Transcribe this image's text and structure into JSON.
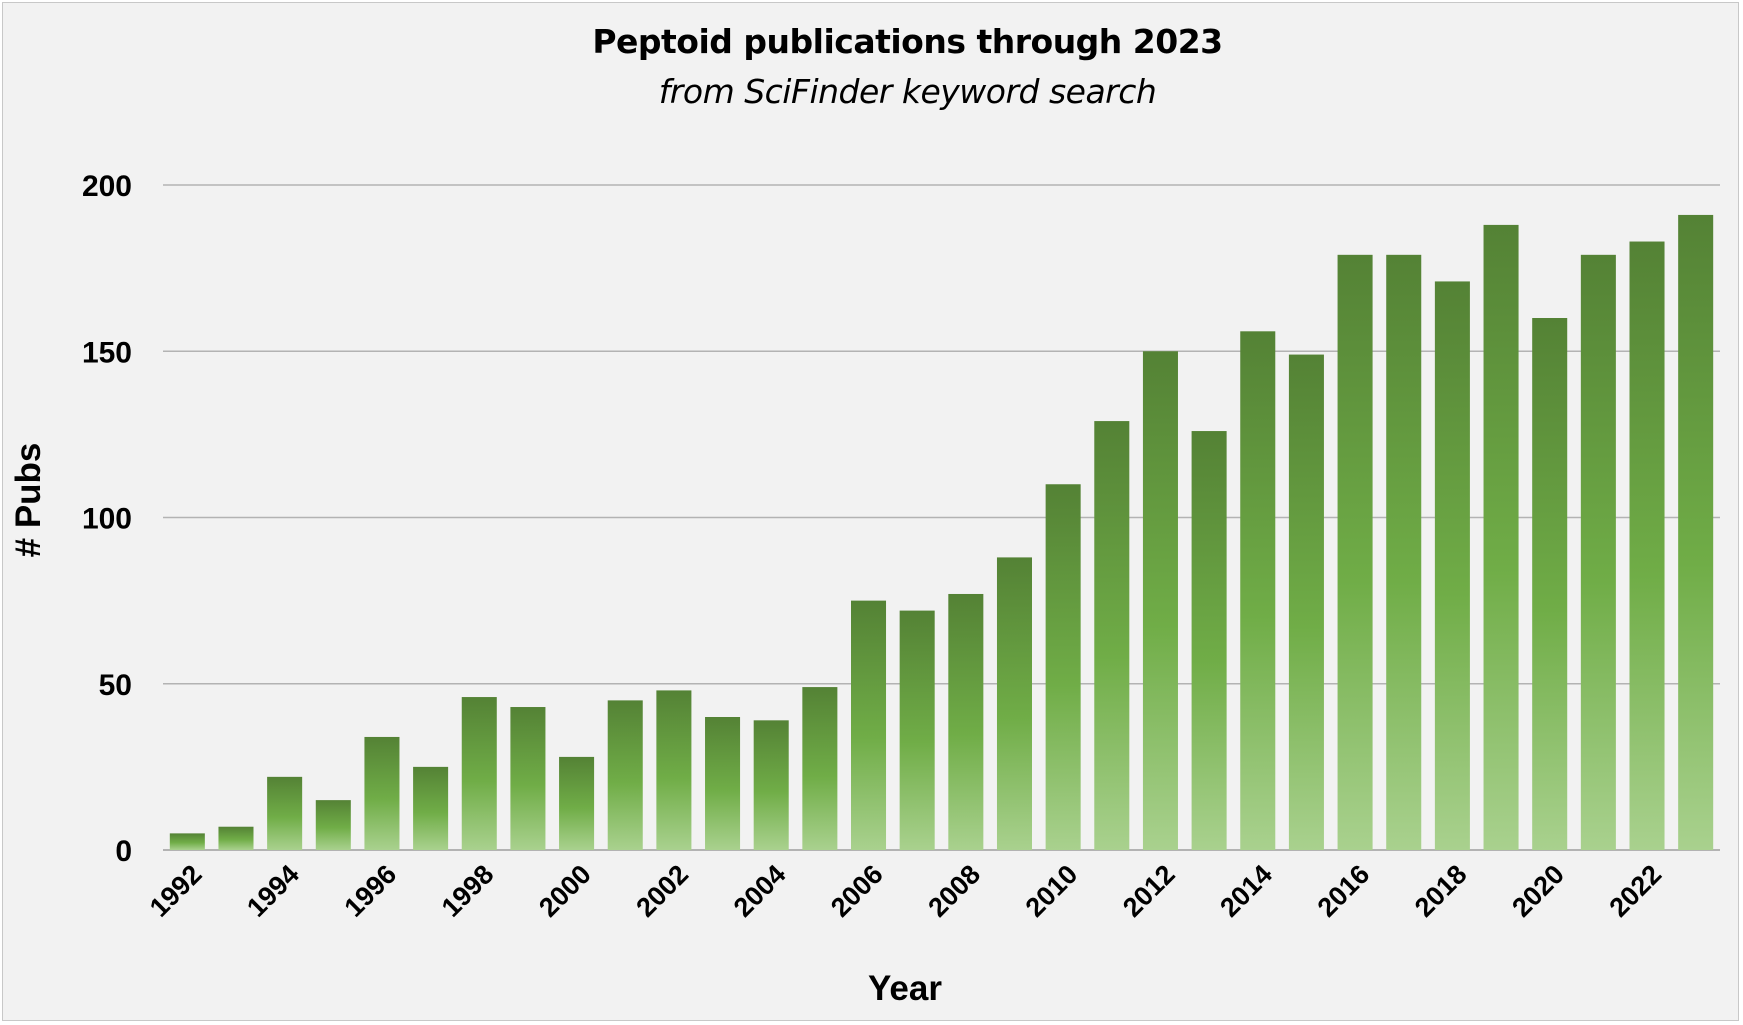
{
  "chart_data": {
    "type": "bar",
    "title": "Peptoid publications through 2023",
    "subtitle": "from SciFinder keyword search",
    "xlabel": "Year",
    "ylabel": "# Pubs",
    "ylim": [
      0,
      200
    ],
    "yticks": [
      0,
      50,
      100,
      150,
      200
    ],
    "grid": true,
    "categories": [
      "1992",
      "1993",
      "1994",
      "1995",
      "1996",
      "1997",
      "1998",
      "1999",
      "2000",
      "2001",
      "2002",
      "2003",
      "2004",
      "2005",
      "2006",
      "2007",
      "2008",
      "2009",
      "2010",
      "2011",
      "2012",
      "2013",
      "2014",
      "2015",
      "2016",
      "2017",
      "2018",
      "2019",
      "2020",
      "2021",
      "2022",
      "2023"
    ],
    "tick_labels": [
      "1992",
      "1994",
      "1996",
      "1998",
      "2000",
      "2002",
      "2004",
      "2006",
      "2008",
      "2010",
      "2012",
      "2014",
      "2016",
      "2018",
      "2020",
      "2022"
    ],
    "values": [
      5,
      7,
      22,
      15,
      34,
      25,
      46,
      43,
      28,
      45,
      48,
      40,
      39,
      49,
      75,
      72,
      77,
      88,
      110,
      129,
      150,
      126,
      156,
      149,
      179,
      179,
      171,
      188,
      160,
      179,
      183,
      191
    ],
    "colors": {
      "bar_top": "#548235",
      "bar_mid": "#70ad47",
      "bar_bottom": "#a9d18e",
      "grid": "#b3b3b3",
      "background": "#f2f2f2"
    }
  }
}
